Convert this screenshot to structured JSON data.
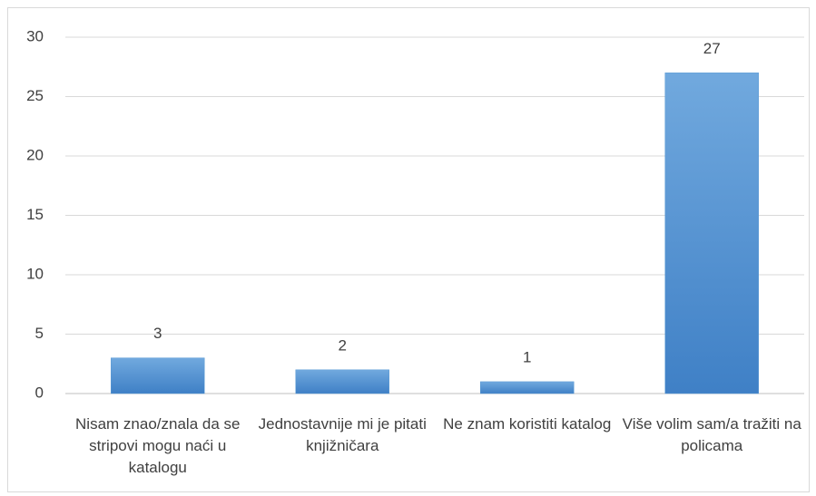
{
  "chart_data": {
    "type": "bar",
    "categories": [
      "Nisam znao/znala da se stripovi mogu naći u katalogu",
      "Jednostavnije mi je pitati knjižničara",
      "Ne znam koristiti katalog",
      "Više volim sam/a tražiti na policama"
    ],
    "values": [
      3,
      2,
      1,
      27
    ],
    "color": "#5b9bd5",
    "ylim": [
      0,
      30
    ],
    "yticks": [
      0,
      5,
      10,
      15,
      20,
      25,
      30
    ],
    "grid": true
  }
}
